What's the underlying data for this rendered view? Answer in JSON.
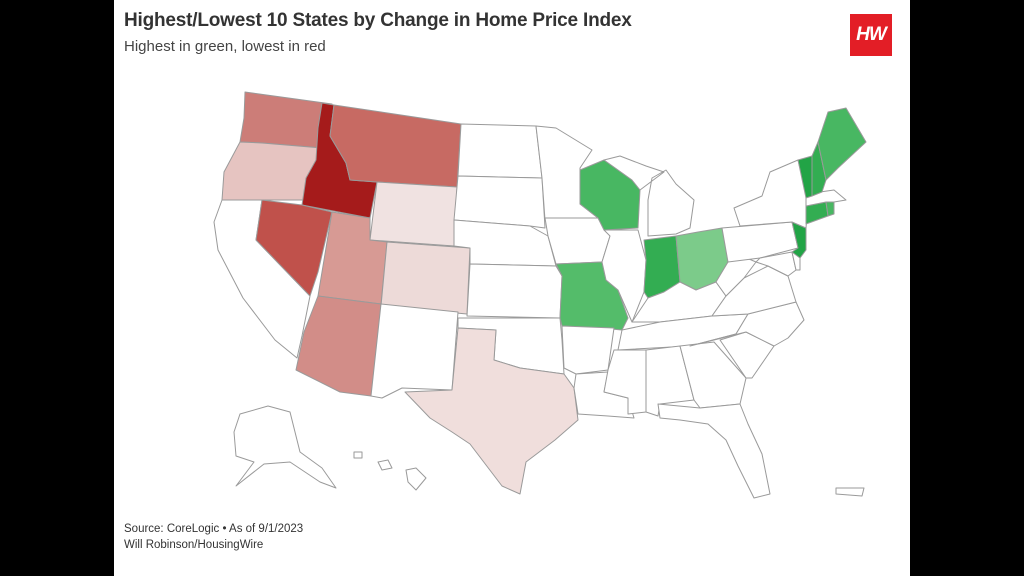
{
  "title": "Highest/Lowest 10 States by Change in Home Price Index",
  "subtitle": "Highest in green, lowest in red",
  "logo_text": "HW",
  "source_line": "Source: CoreLogic • As of 9/1/2023",
  "credit_line": "Will Robinson/HousingWire",
  "colors": {
    "background": "#000000",
    "card": "#ffffff",
    "no_data": "#ffffff",
    "outline": "#9a9a9a",
    "logo": "#e31e26"
  },
  "chart_data": {
    "type": "choropleth",
    "states": [
      {
        "id": "ID",
        "group": "lowest",
        "fill": "#a51b1b"
      },
      {
        "id": "NV",
        "group": "lowest",
        "fill": "#c0514b"
      },
      {
        "id": "MT",
        "group": "lowest",
        "fill": "#c76a63"
      },
      {
        "id": "WA",
        "group": "lowest",
        "fill": "#cc7d78"
      },
      {
        "id": "AZ",
        "group": "lowest",
        "fill": "#d28d88"
      },
      {
        "id": "UT",
        "group": "lowest",
        "fill": "#d79a94"
      },
      {
        "id": "OR",
        "group": "lowest",
        "fill": "#e6c4c1"
      },
      {
        "id": "CO",
        "group": "lowest",
        "fill": "#eddad8"
      },
      {
        "id": "WY",
        "group": "lowest",
        "fill": "#f0e2e1"
      },
      {
        "id": "TX",
        "group": "lowest",
        "fill": "#f0dedc"
      },
      {
        "id": "VT",
        "group": "highest",
        "fill": "#22a446"
      },
      {
        "id": "NJ",
        "group": "highest",
        "fill": "#22a446"
      },
      {
        "id": "NH",
        "group": "highest",
        "fill": "#33ad52"
      },
      {
        "id": "CT",
        "group": "highest",
        "fill": "#33ad52"
      },
      {
        "id": "IN",
        "group": "highest",
        "fill": "#33ad52"
      },
      {
        "id": "ME",
        "group": "highest",
        "fill": "#48b762"
      },
      {
        "id": "RI",
        "group": "highest",
        "fill": "#48b762"
      },
      {
        "id": "WI",
        "group": "highest",
        "fill": "#48b762"
      },
      {
        "id": "MO",
        "group": "highest",
        "fill": "#54bc6a"
      },
      {
        "id": "OH",
        "group": "highest",
        "fill": "#7ccb8a"
      }
    ]
  }
}
